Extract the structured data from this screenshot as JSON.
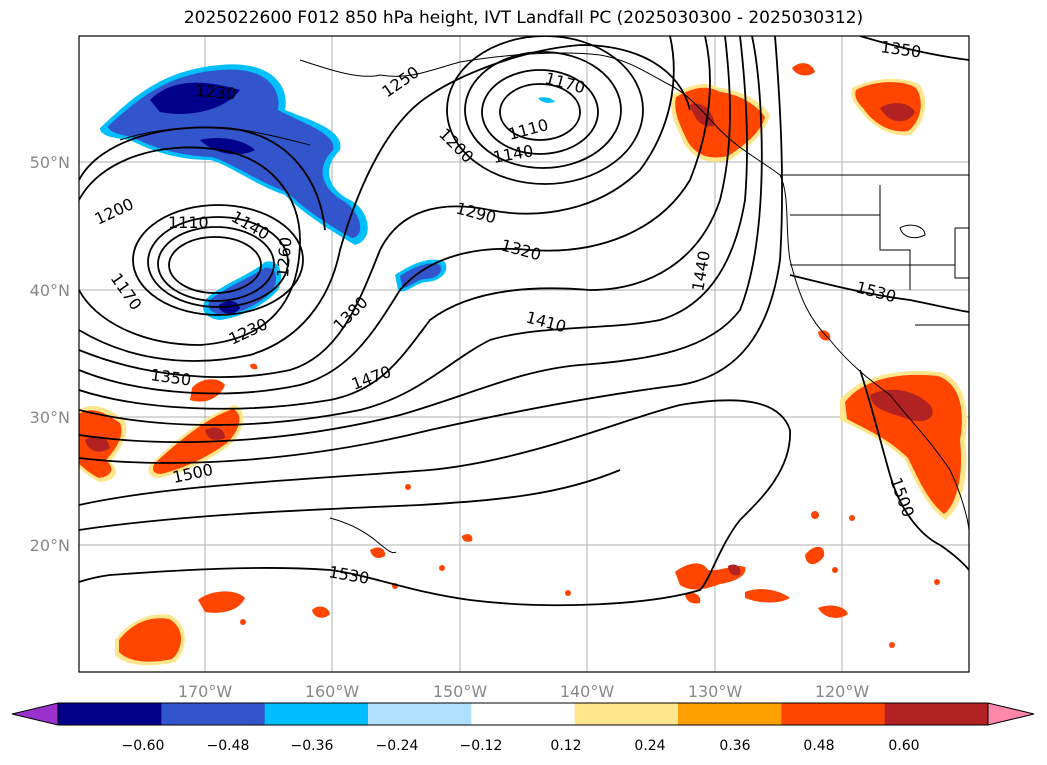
{
  "title": "2025022600 F012 850 hPa height, IVT Landfall PC (2025030300 - 2025030312)",
  "lat_labels": [
    "50°N",
    "40°N",
    "30°N",
    "20°N"
  ],
  "lon_labels": [
    "170°W",
    "160°W",
    "150°W",
    "140°W",
    "130°W",
    "120°W"
  ],
  "contour_labels": [
    "1350",
    "1230",
    "1250",
    "1170",
    "1110",
    "1140",
    "1200",
    "1200",
    "1110",
    "1140",
    "1260",
    "1290",
    "1320",
    "1440",
    "1170",
    "1230",
    "1380",
    "1410",
    "1530",
    "1350",
    "1470",
    "1500",
    "1500",
    "1530"
  ],
  "colorbar": {
    "ticks": [
      "−0.60",
      "−0.48",
      "−0.36",
      "−0.24",
      "−0.12",
      "0.12",
      "0.24",
      "0.36",
      "0.48",
      "0.60"
    ],
    "colors": [
      "#9932cc",
      "#00008b",
      "#3355cc",
      "#00bfff",
      "#b0e0ff",
      "#ffffff",
      "#ffe68c",
      "#ffa000",
      "#ff4500",
      "#b22222",
      "#ff88aa"
    ]
  }
}
